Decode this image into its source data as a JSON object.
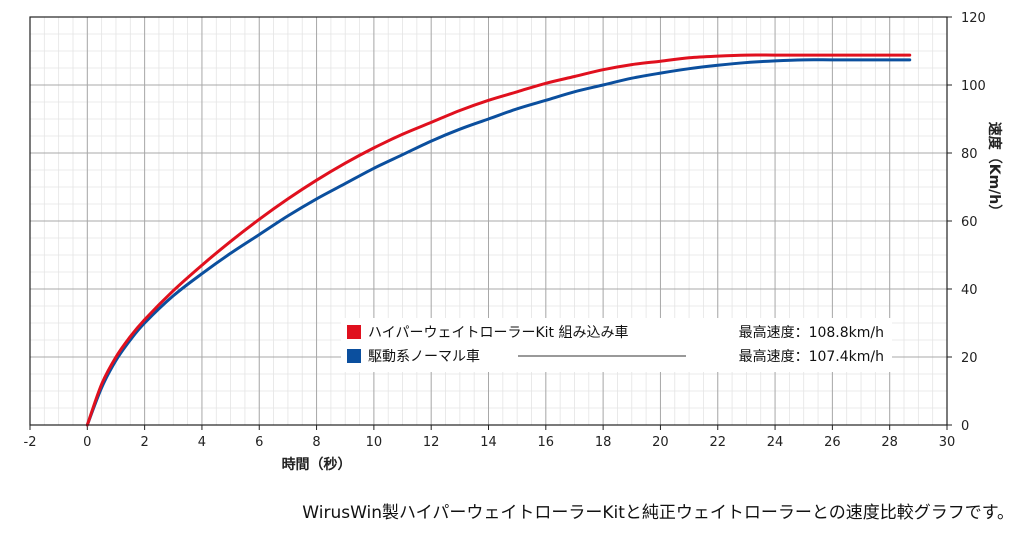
{
  "chart_data": {
    "type": "line",
    "xlabel": "時間（秒）",
    "ylabel": "速度（Km/h）",
    "xlim": [
      -2,
      30
    ],
    "ylim": [
      0,
      120
    ],
    "x_ticks": [
      "-2",
      "0",
      "2",
      "4",
      "6",
      "8",
      "10",
      "12",
      "14",
      "16",
      "18",
      "20",
      "22",
      "24",
      "26",
      "28",
      "30"
    ],
    "y_ticks": [
      "0",
      "20",
      "40",
      "60",
      "80",
      "100",
      "120"
    ],
    "grid": true,
    "legend_position": "lower-right",
    "series": [
      {
        "name": "ハイパーウェイトローラーKit 組み込み車",
        "max_label": "最高速度：108.8km/h",
        "color": "#e0101e",
        "x": [
          0,
          0.5,
          1,
          1.5,
          2,
          3,
          4,
          5,
          6,
          7,
          8,
          9,
          10,
          11,
          12,
          13,
          14,
          15,
          16,
          17,
          18,
          19,
          20,
          21,
          22,
          23,
          24,
          25,
          26,
          27,
          28,
          28.7
        ],
        "y": [
          0,
          12,
          20,
          26,
          31,
          39.5,
          47,
          54,
          60.5,
          66.5,
          72,
          77,
          81.5,
          85.5,
          89,
          92.5,
          95.5,
          98,
          100.5,
          102.5,
          104.5,
          106,
          107,
          108,
          108.5,
          108.8,
          108.8,
          108.8,
          108.8,
          108.8,
          108.8,
          108.8
        ]
      },
      {
        "name": "駆動系ノーマル車",
        "max_label": "最高速度：107.4km/h",
        "color": "#0b4f9e",
        "x": [
          0,
          0.5,
          1,
          1.5,
          2,
          3,
          4,
          5,
          6,
          7,
          8,
          9,
          10,
          11,
          12,
          13,
          14,
          15,
          16,
          17,
          18,
          19,
          20,
          21,
          22,
          23,
          24,
          25,
          26,
          27,
          28,
          28.7
        ],
        "y": [
          0,
          11,
          19,
          25,
          30,
          38,
          44.5,
          50.5,
          56,
          61.5,
          66.5,
          71,
          75.5,
          79.5,
          83.5,
          87,
          90,
          93,
          95.5,
          98,
          100,
          102,
          103.5,
          104.8,
          105.8,
          106.6,
          107.1,
          107.4,
          107.4,
          107.4,
          107.4,
          107.4
        ]
      }
    ]
  },
  "caption": "WirusWin製ハイパーウェイトローラーKitと純正ウェイトローラーとの速度比較グラフです。"
}
